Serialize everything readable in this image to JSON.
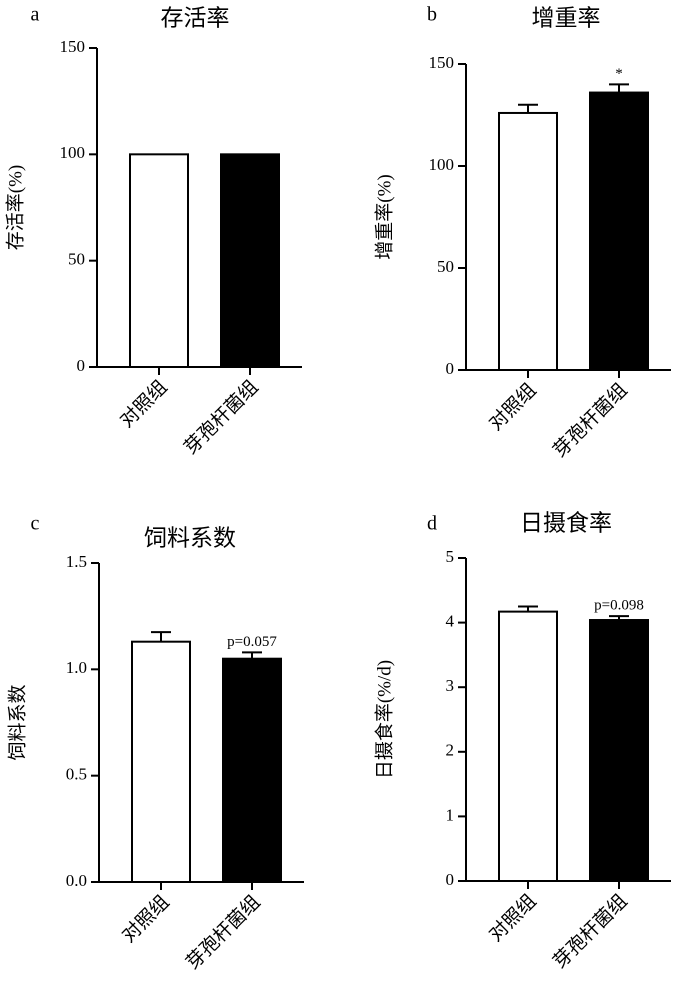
{
  "chart_data": [
    {
      "type": "bar",
      "panel": "a",
      "title": "存活率",
      "ylabel": "存活率(%)",
      "categories": [
        "对照组",
        "芽孢杆菌组"
      ],
      "values": [
        100,
        100
      ],
      "colors": [
        "#ffffff",
        "#000000"
      ],
      "ylim": [
        0,
        150
      ],
      "yticks": [
        0,
        50,
        100,
        150
      ]
    },
    {
      "type": "bar",
      "panel": "b",
      "title": "增重率",
      "ylabel": "增重率(%)",
      "categories": [
        "对照组",
        "芽孢杆菌组"
      ],
      "values": [
        126,
        136
      ],
      "errors": [
        4,
        4
      ],
      "annotations": [
        null,
        "*"
      ],
      "colors": [
        "#ffffff",
        "#000000"
      ],
      "ylim": [
        0,
        150
      ],
      "yticks": [
        0,
        50,
        100,
        150
      ]
    },
    {
      "type": "bar",
      "panel": "c",
      "title": "饲料系数",
      "ylabel": "饲料系数",
      "categories": [
        "对照组",
        "芽孢杆菌组"
      ],
      "values": [
        1.13,
        1.05
      ],
      "errors": [
        0.045,
        0.03
      ],
      "annotations": [
        null,
        "p=0.057"
      ],
      "colors": [
        "#ffffff",
        "#000000"
      ],
      "ylim": [
        0,
        1.5
      ],
      "yticks": [
        {
          "value": 0,
          "label": "0.0"
        },
        0.5,
        {
          "value": 1,
          "label": "1.0"
        },
        1.5
      ]
    },
    {
      "type": "bar",
      "panel": "d",
      "title": "日摄食率",
      "ylabel": "日摄食率(%/d)",
      "categories": [
        "对照组",
        "芽孢杆菌组"
      ],
      "values": [
        4.17,
        4.04
      ],
      "errors": [
        0.08,
        0.06
      ],
      "annotations": [
        null,
        "p=0.098"
      ],
      "colors": [
        "#ffffff",
        "#000000"
      ],
      "ylim": [
        0,
        5
      ],
      "yticks": [
        0,
        1,
        2,
        3,
        4,
        5
      ]
    }
  ]
}
